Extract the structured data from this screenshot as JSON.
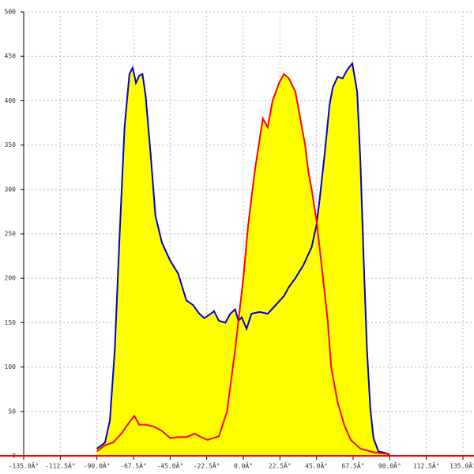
{
  "chart_data": {
    "type": "area",
    "xlim": [
      -135,
      135
    ],
    "ylim": [
      0,
      500
    ],
    "xticks": [
      {
        "value": -135,
        "label": "-135.0Â°"
      },
      {
        "value": -112.5,
        "label": "-112.5Â°"
      },
      {
        "value": -90,
        "label": "-90.0Â°"
      },
      {
        "value": -67.5,
        "label": "-67.5Â°"
      },
      {
        "value": -45,
        "label": "-45.0Â°"
      },
      {
        "value": -22.5,
        "label": "-22.5Â°"
      },
      {
        "value": 0,
        "label": "0.0Â°"
      },
      {
        "value": 22.5,
        "label": "22.5Â°"
      },
      {
        "value": 45,
        "label": "45.0Â°"
      },
      {
        "value": 67.5,
        "label": "67.5Â°"
      },
      {
        "value": 90,
        "label": "90.0Â°"
      },
      {
        "value": 112.5,
        "label": "112.5Â°"
      },
      {
        "value": 135,
        "label": "135.0Â°"
      }
    ],
    "yticks": [
      0,
      50,
      100,
      150,
      200,
      250,
      300,
      350,
      400,
      450,
      500
    ],
    "grid": true,
    "fill": "#ffff00",
    "axis_color": "#ff0000",
    "series": [
      {
        "color": "#0000cc",
        "x": [
          -90,
          -85,
          -82,
          -79,
          -76,
          -73,
          -70,
          -68,
          -66,
          -64,
          -62,
          -60,
          -57,
          -54,
          -50,
          -45,
          -40,
          -35,
          -31,
          -27,
          -24,
          -20,
          -18,
          -15,
          -11,
          -8,
          -5,
          -3,
          -1,
          2,
          5,
          10,
          15,
          20,
          25,
          28,
          32,
          37,
          42,
          45,
          47,
          50,
          53,
          55,
          58,
          61,
          64,
          67,
          70,
          72,
          74,
          76,
          78,
          80,
          83,
          88,
          90
        ],
        "values": [
          8,
          15,
          40,
          120,
          250,
          370,
          430,
          437,
          420,
          428,
          430,
          405,
          340,
          270,
          240,
          220,
          205,
          175,
          170,
          160,
          155,
          160,
          163,
          152,
          150,
          160,
          165,
          152,
          156,
          143,
          160,
          162,
          160,
          170,
          180,
          190,
          200,
          215,
          235,
          260,
          290,
          340,
          395,
          415,
          427,
          425,
          435,
          442,
          410,
          330,
          220,
          120,
          55,
          20,
          5,
          3,
          0
        ]
      },
      {
        "color": "#ff0000",
        "x": [
          -90,
          -85,
          -80,
          -75,
          -70,
          -67,
          -64,
          -60,
          -55,
          -50,
          -45,
          -40,
          -35,
          -30,
          -27,
          -22,
          -15,
          -10,
          -5,
          0,
          3,
          7,
          12,
          15,
          18,
          22,
          25,
          28,
          32,
          35,
          38,
          40,
          42,
          45,
          49,
          52,
          54,
          58,
          62,
          66,
          72,
          80,
          90
        ],
        "values": [
          5,
          12,
          15,
          25,
          38,
          45,
          35,
          35,
          33,
          28,
          20,
          21,
          21,
          25,
          22,
          18,
          22,
          50,
          120,
          200,
          260,
          320,
          380,
          370,
          400,
          420,
          430,
          425,
          410,
          380,
          350,
          320,
          300,
          265,
          200,
          150,
          100,
          60,
          35,
          18,
          8,
          4,
          2
        ]
      }
    ]
  }
}
